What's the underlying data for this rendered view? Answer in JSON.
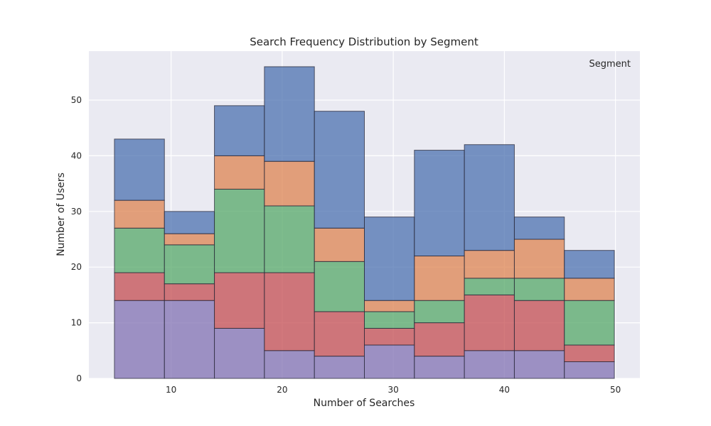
{
  "chart_data": {
    "type": "bar",
    "stacked": true,
    "title": "Search Frequency Distribution by Segment",
    "xlabel": "Number of Searches",
    "ylabel": "Number of Users",
    "legend_title": "Segment",
    "legend_position": "top-right",
    "bin_edges": [
      4.9,
      9.4,
      13.9,
      18.4,
      22.9,
      27.4,
      31.9,
      36.4,
      40.9,
      45.4,
      49.9
    ],
    "xlim": [
      2.6,
      52.2
    ],
    "ylim": [
      0,
      58.8
    ],
    "xticks": [
      10,
      20,
      30,
      40,
      50
    ],
    "yticks": [
      0,
      10,
      20,
      30,
      40,
      50
    ],
    "grid": true,
    "series": [
      {
        "color": "#8172b3",
        "values": [
          14,
          14,
          9,
          5,
          4,
          6,
          4,
          5,
          5,
          3
        ]
      },
      {
        "color": "#c44e52",
        "values": [
          5,
          3,
          10,
          14,
          8,
          3,
          6,
          10,
          9,
          3
        ]
      },
      {
        "color": "#55a868",
        "values": [
          8,
          7,
          15,
          12,
          9,
          3,
          4,
          3,
          4,
          8
        ]
      },
      {
        "color": "#dd8452",
        "values": [
          5,
          2,
          6,
          8,
          6,
          2,
          8,
          5,
          7,
          4
        ]
      },
      {
        "color": "#4c72b0",
        "values": [
          11,
          4,
          9,
          17,
          21,
          15,
          19,
          19,
          4,
          5
        ]
      }
    ]
  }
}
